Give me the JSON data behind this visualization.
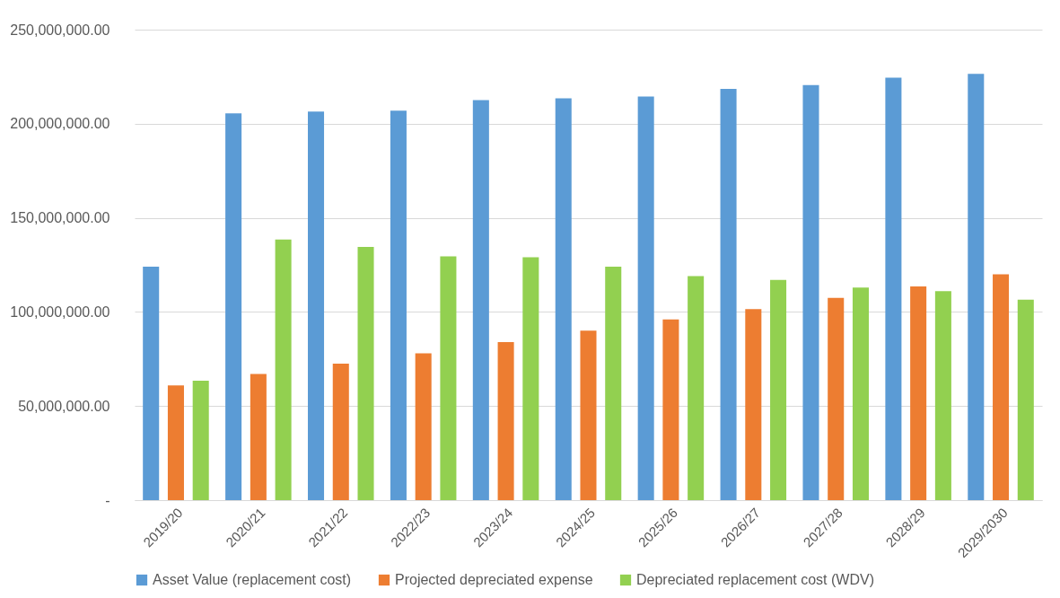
{
  "chart_data": {
    "type": "bar",
    "categories": [
      "2019/20",
      "2020/21",
      "2021/22",
      "2022/23",
      "2023/24",
      "2024/25",
      "2025/26",
      "2026/27",
      "2027/28",
      "2028/29",
      "2029/2030"
    ],
    "series": [
      {
        "name": "Asset Value (replacement cost)",
        "color": "#5b9bd5",
        "values": [
          124000000,
          205500000,
          206500000,
          207000000,
          212500000,
          213500000,
          214500000,
          218500000,
          220500000,
          224500000,
          226500000
        ]
      },
      {
        "name": "Projected depreciated expense",
        "color": "#ed7d31",
        "values": [
          61000000,
          67000000,
          72500000,
          78000000,
          84000000,
          90000000,
          96000000,
          101500000,
          107500000,
          113500000,
          120000000
        ]
      },
      {
        "name": "Depreciated replacement cost (WDV)",
        "color": "#92d050",
        "values": [
          63500000,
          138500000,
          134500000,
          129500000,
          129000000,
          124000000,
          119000000,
          117000000,
          113000000,
          111000000,
          106500000
        ]
      }
    ],
    "ylim": [
      0,
      250000000
    ],
    "yticks": [
      {
        "value": 0,
        "label": "-"
      },
      {
        "value": 50000000,
        "label": "50,000,000.00"
      },
      {
        "value": 100000000,
        "label": "100,000,000.00"
      },
      {
        "value": 150000000,
        "label": "150,000,000.00"
      },
      {
        "value": 200000000,
        "label": "200,000,000.00"
      },
      {
        "value": 250000000,
        "label": "250,000,000.00"
      }
    ],
    "grid": "y",
    "legend": "bottom"
  }
}
